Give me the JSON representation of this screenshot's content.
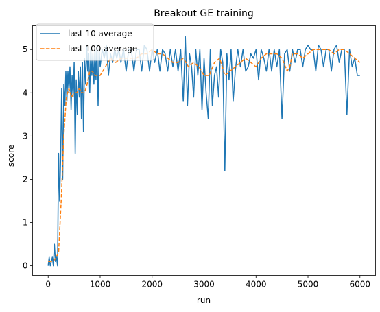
{
  "chart_data": {
    "type": "line",
    "title": "Breakout GE training",
    "xlabel": "run",
    "ylabel": "score",
    "xlim": [
      -300,
      6300
    ],
    "ylim": [
      -0.22,
      5.55
    ],
    "xticks": [
      0,
      1000,
      2000,
      3000,
      4000,
      5000,
      6000
    ],
    "yticks": [
      0,
      1,
      2,
      3,
      4,
      5
    ],
    "grid": false,
    "legend_position": "top-left",
    "series": [
      {
        "name": "last 10 average",
        "color": "#1f77b4",
        "style": "solid",
        "x": [
          0,
          20,
          40,
          60,
          80,
          100,
          120,
          140,
          160,
          180,
          200,
          220,
          240,
          260,
          280,
          300,
          320,
          340,
          360,
          380,
          400,
          420,
          440,
          460,
          480,
          500,
          520,
          540,
          560,
          580,
          600,
          620,
          640,
          660,
          680,
          700,
          720,
          740,
          760,
          780,
          800,
          820,
          840,
          860,
          880,
          900,
          920,
          940,
          960,
          980,
          1000,
          1040,
          1080,
          1120,
          1160,
          1200,
          1240,
          1280,
          1320,
          1360,
          1400,
          1450,
          1500,
          1550,
          1600,
          1650,
          1700,
          1750,
          1800,
          1850,
          1900,
          1950,
          2000,
          2050,
          2100,
          2150,
          2200,
          2250,
          2300,
          2350,
          2400,
          2450,
          2500,
          2550,
          2600,
          2640,
          2680,
          2720,
          2760,
          2800,
          2840,
          2880,
          2920,
          2960,
          3000,
          3040,
          3080,
          3120,
          3160,
          3200,
          3240,
          3280,
          3320,
          3360,
          3400,
          3440,
          3480,
          3520,
          3560,
          3600,
          3650,
          3700,
          3750,
          3800,
          3850,
          3900,
          3950,
          4000,
          4050,
          4100,
          4150,
          4200,
          4250,
          4300,
          4350,
          4400,
          4450,
          4500,
          4550,
          4600,
          4650,
          4700,
          4750,
          4800,
          4850,
          4900,
          4950,
          5000,
          5050,
          5100,
          5150,
          5200,
          5250,
          5300,
          5350,
          5400,
          5450,
          5500,
          5550,
          5600,
          5650,
          5700,
          5750,
          5800,
          5850,
          5900,
          5950,
          6000
        ],
        "y": [
          0.0,
          0.2,
          0.0,
          0.1,
          0.2,
          0.0,
          0.5,
          0.1,
          0.2,
          0.0,
          2.6,
          1.5,
          2.5,
          4.1,
          2.0,
          4.2,
          3.7,
          4.5,
          3.8,
          4.5,
          4.0,
          4.6,
          3.6,
          4.4,
          3.9,
          4.7,
          2.6,
          4.3,
          3.5,
          4.5,
          3.9,
          4.6,
          3.4,
          4.7,
          3.1,
          4.8,
          4.2,
          5.1,
          4.5,
          4.9,
          4.0,
          5.0,
          4.4,
          4.9,
          4.2,
          5.0,
          4.3,
          5.1,
          3.7,
          5.0,
          4.6,
          5.0,
          4.8,
          5.1,
          4.4,
          4.9,
          4.7,
          5.0,
          4.8,
          5.0,
          4.7,
          5.0,
          4.5,
          5.0,
          5.0,
          4.5,
          5.0,
          5.0,
          4.5,
          5.1,
          5.0,
          4.5,
          5.0,
          4.7,
          5.0,
          4.5,
          5.0,
          4.9,
          4.5,
          5.0,
          4.6,
          5.0,
          4.5,
          5.0,
          3.8,
          5.3,
          3.7,
          4.9,
          4.6,
          3.9,
          5.0,
          4.4,
          5.0,
          3.6,
          4.8,
          4.0,
          3.4,
          5.0,
          3.7,
          4.4,
          4.6,
          3.9,
          5.0,
          4.7,
          2.2,
          4.9,
          4.3,
          5.0,
          3.8,
          4.5,
          5.0,
          4.6,
          5.0,
          4.5,
          4.6,
          4.9,
          4.8,
          5.0,
          4.3,
          5.0,
          4.8,
          4.5,
          5.0,
          4.5,
          5.0,
          4.6,
          5.0,
          3.4,
          4.9,
          5.0,
          4.5,
          5.0,
          4.7,
          5.0,
          5.0,
          4.6,
          5.0,
          5.1,
          5.0,
          5.0,
          4.5,
          5.1,
          5.0,
          4.6,
          5.0,
          5.0,
          4.5,
          5.0,
          5.1,
          4.7,
          5.0,
          5.0,
          3.5,
          5.0,
          4.6,
          4.8,
          4.4,
          4.4
        ]
      },
      {
        "name": "last 100 average",
        "color": "#ff7f0e",
        "style": "dashed",
        "x": [
          0,
          100,
          200,
          250,
          300,
          350,
          400,
          450,
          500,
          550,
          600,
          650,
          700,
          750,
          800,
          850,
          900,
          1000,
          1100,
          1200,
          1300,
          1400,
          1500,
          1600,
          1700,
          1800,
          1900,
          2000,
          2100,
          2200,
          2300,
          2400,
          2500,
          2600,
          2700,
          2800,
          2900,
          3000,
          3100,
          3200,
          3300,
          3400,
          3500,
          3600,
          3700,
          3800,
          3900,
          4000,
          4100,
          4200,
          4300,
          4400,
          4500,
          4600,
          4650,
          4700,
          4800,
          4900,
          5000,
          5100,
          5200,
          5300,
          5400,
          5500,
          5600,
          5700,
          5800,
          5900,
          6000
        ],
        "y": [
          0.1,
          0.1,
          0.3,
          1.5,
          3.0,
          3.9,
          4.1,
          3.9,
          4.0,
          4.0,
          4.1,
          4.0,
          4.0,
          4.2,
          4.5,
          4.5,
          4.4,
          4.4,
          4.6,
          4.8,
          4.7,
          4.8,
          4.8,
          4.8,
          4.8,
          4.9,
          4.9,
          5.0,
          4.9,
          4.9,
          4.8,
          4.7,
          4.7,
          4.8,
          4.6,
          4.7,
          4.6,
          4.4,
          4.4,
          4.7,
          4.8,
          4.4,
          4.5,
          4.6,
          4.7,
          4.8,
          4.7,
          4.6,
          4.8,
          4.9,
          4.9,
          4.9,
          4.8,
          4.5,
          4.6,
          4.9,
          4.9,
          4.8,
          4.9,
          5.0,
          5.0,
          5.0,
          5.0,
          4.9,
          5.0,
          5.0,
          4.9,
          4.8,
          4.7
        ]
      }
    ]
  }
}
